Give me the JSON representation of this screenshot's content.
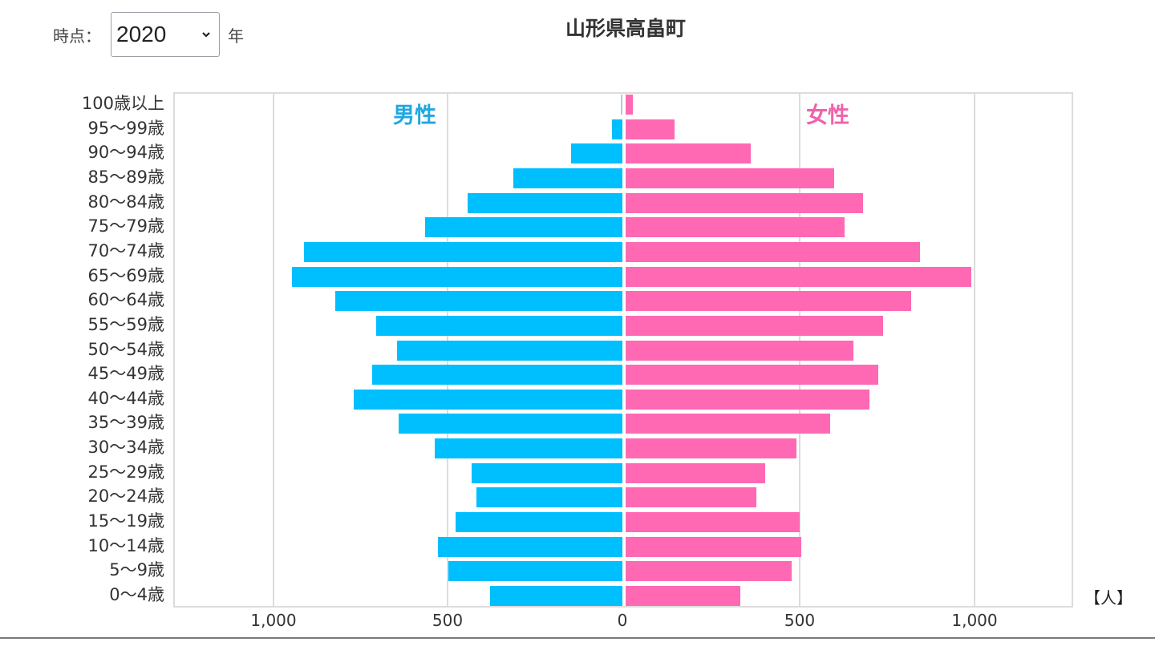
{
  "controls": {
    "label": "時点：",
    "year_select": {
      "value": "2020",
      "icon": "chevron-down-icon"
    },
    "year_suffix": "年"
  },
  "chart_data": {
    "type": "bar",
    "subtype": "population-pyramid",
    "title": "山形県高畠町",
    "xlabel": "",
    "unit_label": "【人】",
    "xlim": [
      -1250,
      1250
    ],
    "x_ticks_left": [
      "1,000",
      "500",
      "0"
    ],
    "x_ticks_right": [
      "0",
      "500",
      "1,000"
    ],
    "grid": true,
    "legend": {
      "male": "男性",
      "female": "女性"
    },
    "colors": {
      "male": "#00bfff",
      "female": "#ff69b4"
    },
    "categories": [
      "100歳以上",
      "95〜99歳",
      "90〜94歳",
      "85〜89歳",
      "80〜84歳",
      "75〜79歳",
      "70〜74歳",
      "65〜69歳",
      "60〜64歳",
      "55〜59歳",
      "50〜54歳",
      "45〜49歳",
      "40〜44歳",
      "35〜39歳",
      "30〜34歳",
      "25〜29歳",
      "20〜24歳",
      "15〜19歳",
      "10〜14歳",
      "5〜9歳",
      "0〜4歳"
    ],
    "series": [
      {
        "name": "男性",
        "values": [
          4,
          30,
          147,
          313,
          444,
          566,
          913,
          947,
          823,
          706,
          646,
          717,
          770,
          641,
          538,
          432,
          418,
          478,
          529,
          499,
          379
        ]
      },
      {
        "name": "女性",
        "values": [
          21,
          140,
          359,
          598,
          680,
          628,
          844,
          991,
          818,
          738,
          653,
          724,
          699,
          586,
          490,
          400,
          375,
          499,
          503,
          476,
          329
        ]
      }
    ]
  }
}
